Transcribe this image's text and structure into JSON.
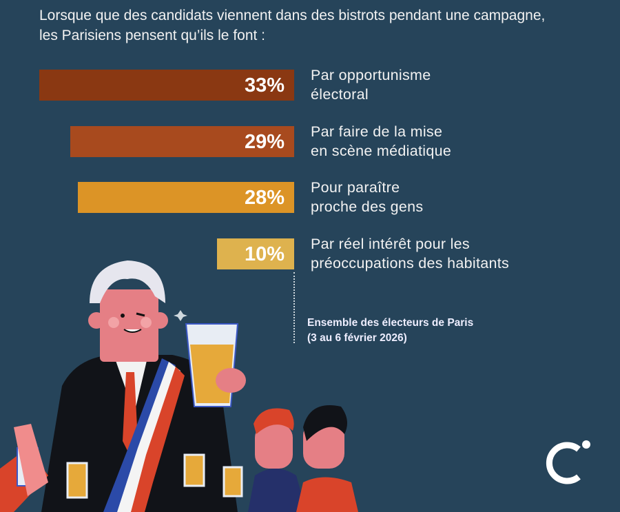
{
  "title_lines": [
    "Lorsque que des candidats viennent dans des bistrots pendant une campagne,",
    "les Parisiens pensent qu’ils le font :"
  ],
  "chart_data": {
    "type": "bar",
    "orientation": "horizontal",
    "categories": [
      [
        "Par opportunisme",
        "électoral"
      ],
      [
        "Par faire de la mise",
        "en scène médiatique"
      ],
      [
        "Pour paraître",
        "proche des gens"
      ],
      [
        "Par réel intérêt pour les",
        "préoccupations des habitants"
      ]
    ],
    "values": [
      33,
      29,
      28,
      10
    ],
    "value_labels": [
      "33%",
      "29%",
      "28%",
      "10%"
    ],
    "colors": [
      "#8a3812",
      "#a84a1e",
      "#dc9426",
      "#deb24e"
    ],
    "unit": "%",
    "grid": false
  },
  "source_lines": [
    "Ensemble des électeurs de Paris",
    "(3 au 6 février 2026)"
  ],
  "colors": {
    "background": "#26445a"
  }
}
